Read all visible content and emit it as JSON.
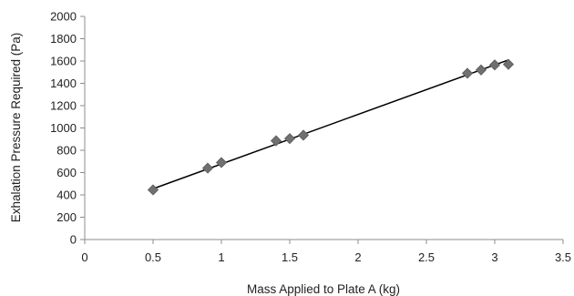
{
  "chart_data": {
    "type": "scatter",
    "xlabel": "Mass Applied to Plate A (kg)",
    "ylabel": "Exhalation Pressure Required (Pa)",
    "xlim": [
      0,
      3.5
    ],
    "ylim": [
      0,
      2000
    ],
    "xticks": [
      "0",
      "0.5",
      "1",
      "1.5",
      "2",
      "2.5",
      "3",
      "3.5"
    ],
    "yticks": [
      "0",
      "200",
      "400",
      "600",
      "800",
      "1000",
      "1200",
      "1400",
      "1600",
      "1800",
      "2000"
    ],
    "grid": false,
    "legend": "none",
    "marker": "diamond",
    "marker_color": "#707070",
    "line_color": "#000000",
    "points": [
      {
        "x": 0.5,
        "y": 445
      },
      {
        "x": 0.9,
        "y": 640
      },
      {
        "x": 1.0,
        "y": 690
      },
      {
        "x": 1.4,
        "y": 885
      },
      {
        "x": 1.5,
        "y": 905
      },
      {
        "x": 1.6,
        "y": 935
      },
      {
        "x": 2.8,
        "y": 1490
      },
      {
        "x": 2.9,
        "y": 1520
      },
      {
        "x": 3.0,
        "y": 1565
      },
      {
        "x": 3.1,
        "y": 1570
      }
    ],
    "trendline": {
      "x": [
        0.5,
        3.1
      ],
      "y": [
        455,
        1610
      ]
    }
  }
}
